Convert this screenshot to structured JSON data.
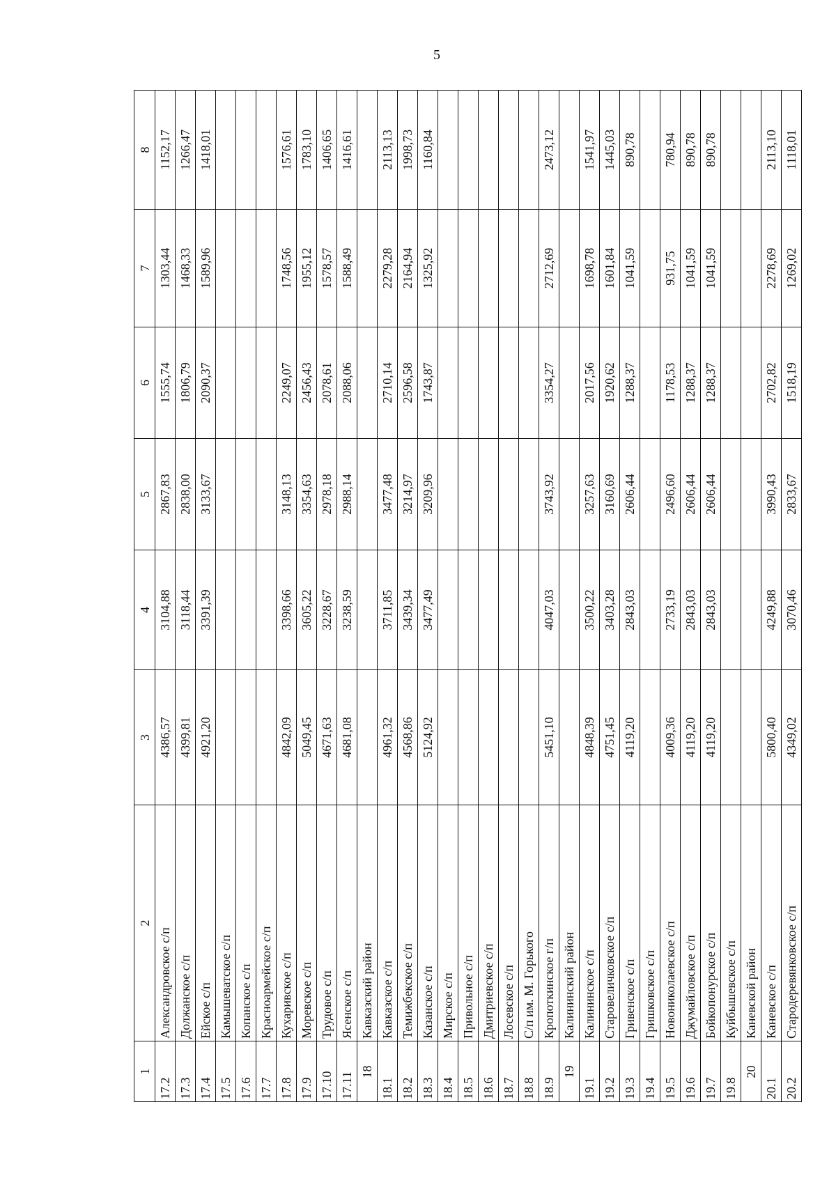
{
  "page_number": "5",
  "table": {
    "headers": [
      "1",
      "2",
      "3",
      "4",
      "5",
      "6",
      "7",
      "8"
    ],
    "rows": [
      {
        "code": "17.2",
        "name": "Александровское с/п",
        "values": [
          "4386,57",
          "3104,88",
          "2867,83",
          "1555,74",
          "1303,44",
          "1152,17"
        ]
      },
      {
        "code": "17.3",
        "name": "Должанское с/п",
        "values": [
          "4399,81",
          "3118,44",
          "2838,00",
          "1806,79",
          "1468,33",
          "1266,47"
        ]
      },
      {
        "code": "17.4",
        "name": "Ейское с/п",
        "values": [
          "4921,20",
          "3391,39",
          "3133,67",
          "2090,37",
          "1589,96",
          "1418,01"
        ]
      },
      {
        "code": "17.5",
        "name": "Камышеватское с/п",
        "values": [
          "",
          "",
          "",
          "",
          "",
          ""
        ]
      },
      {
        "code": "17.6",
        "name": "Копанское с/п",
        "values": [
          "",
          "",
          "",
          "",
          "",
          ""
        ]
      },
      {
        "code": "17.7",
        "name": "Красноармейское с/п",
        "values": [
          "",
          "",
          "",
          "",
          "",
          ""
        ]
      },
      {
        "code": "17.8",
        "name": "Кухаривское с/п",
        "values": [
          "4842,09",
          "3398,66",
          "3148,13",
          "2249,07",
          "1748,56",
          "1576,61"
        ]
      },
      {
        "code": "17.9",
        "name": "Моревское с/п",
        "values": [
          "5049,45",
          "3605,22",
          "3354,63",
          "2456,43",
          "1955,12",
          "1783,10"
        ]
      },
      {
        "code": "17.10",
        "name": "Трудовое с/п",
        "values": [
          "4671,63",
          "3228,67",
          "2978,18",
          "2078,61",
          "1578,57",
          "1406,65"
        ]
      },
      {
        "code": "17.11",
        "name": "Ясенское с/п",
        "values": [
          "4681,08",
          "3238,59",
          "2988,14",
          "2088,06",
          "1588,49",
          "1416,61"
        ]
      },
      {
        "code": "18",
        "name": "Кавказский район",
        "values": [
          "",
          "",
          "",
          "",
          "",
          ""
        ]
      },
      {
        "code": "18.1",
        "name": "Кавказское с/п",
        "values": [
          "4961,32",
          "3711,85",
          "3477,48",
          "2710,14",
          "2279,28",
          "2113,13"
        ]
      },
      {
        "code": "18.2",
        "name": "Темижбекское с/п",
        "values": [
          "4568,86",
          "3439,34",
          "3214,97",
          "2596,58",
          "2164,94",
          "1998,73"
        ]
      },
      {
        "code": "18.3",
        "name": "Казанское с/п",
        "values": [
          "5124,92",
          "3477,49",
          "3209,96",
          "1743,87",
          "1325,92",
          "1160,84"
        ]
      },
      {
        "code": "18.4",
        "name": "Мирское с/п",
        "values": [
          "",
          "",
          "",
          "",
          "",
          ""
        ]
      },
      {
        "code": "18.5",
        "name": "Привольное с/п",
        "values": [
          "",
          "",
          "",
          "",
          "",
          ""
        ]
      },
      {
        "code": "18.6",
        "name": "Дмитриевское с/п",
        "values": [
          "",
          "",
          "",
          "",
          "",
          ""
        ]
      },
      {
        "code": "18.7",
        "name": "Лосевское с/п",
        "values": [
          "",
          "",
          "",
          "",
          "",
          ""
        ]
      },
      {
        "code": "18.8",
        "name": "С/п им. М. Горького",
        "values": [
          "",
          "",
          "",
          "",
          "",
          ""
        ]
      },
      {
        "code": "18.9",
        "name": "Кропоткинское г/п",
        "values": [
          "5451,10",
          "4047,03",
          "3743,92",
          "3354,27",
          "2712,69",
          "2473,12"
        ]
      },
      {
        "code": "19",
        "name": "Калининский район",
        "values": [
          "",
          "",
          "",
          "",
          "",
          ""
        ]
      },
      {
        "code": "19.1",
        "name": "Калининское с/п",
        "values": [
          "4848,39",
          "3500,22",
          "3257,63",
          "2017,56",
          "1698,78",
          "1541,97"
        ]
      },
      {
        "code": "19.2",
        "name": "Старовеличковское с/п",
        "values": [
          "4751,45",
          "3403,28",
          "3160,69",
          "1920,62",
          "1601,84",
          "1445,03"
        ]
      },
      {
        "code": "19.3",
        "name": "Гривенское с/п",
        "values": [
          "4119,20",
          "2843,03",
          "2606,44",
          "1288,37",
          "1041,59",
          "890,78"
        ]
      },
      {
        "code": "19.4",
        "name": "Гришковское с/п",
        "values": [
          "",
          "",
          "",
          "",
          "",
          ""
        ]
      },
      {
        "code": "19.5",
        "name": "Новониколаевское с/п",
        "values": [
          "4009,36",
          "2733,19",
          "2496,60",
          "1178,53",
          "931,75",
          "780,94"
        ]
      },
      {
        "code": "19.6",
        "name": "Джумайловское с/п",
        "values": [
          "4119,20",
          "2843,03",
          "2606,44",
          "1288,37",
          "1041,59",
          "890,78"
        ]
      },
      {
        "code": "19.7",
        "name": "Бойкопонурское с/п",
        "values": [
          "4119,20",
          "2843,03",
          "2606,44",
          "1288,37",
          "1041,59",
          "890,78"
        ]
      },
      {
        "code": "19.8",
        "name": "Куйбышевское с/п",
        "values": [
          "",
          "",
          "",
          "",
          "",
          ""
        ]
      },
      {
        "code": "20",
        "name": "Каневской район",
        "values": [
          "",
          "",
          "",
          "",
          "",
          ""
        ]
      },
      {
        "code": "20.1",
        "name": "Каневское с/п",
        "values": [
          "5800,40",
          "4249,88",
          "3990,43",
          "2702,82",
          "2278,69",
          "2113,10"
        ]
      },
      {
        "code": "20.2",
        "name": "Стародеревянковское с/п",
        "values": [
          "4349,02",
          "3070,46",
          "2833,67",
          "1518,19",
          "1269,02",
          "1118,01"
        ]
      }
    ]
  }
}
